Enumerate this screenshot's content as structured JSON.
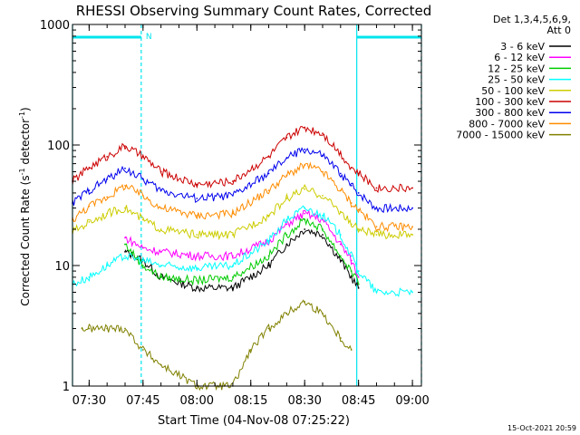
{
  "chart_data": {
    "type": "line",
    "title": "RHESSI Observing Summary Count Rates, Corrected",
    "xlabel": "Start Time (04-Nov-08 07:25:22)",
    "ylabel": "Corrected Count Rate (s",
    "ylabel_sup1": "-1",
    "ylabel_mid": " detector",
    "ylabel_sup2": "-1",
    "ylabel_end": ")",
    "y_scale": "log",
    "ylim": [
      1,
      1000
    ],
    "xlim": [
      "07:25:22",
      "09:02:30"
    ],
    "x_ticks": [
      "07:30",
      "07:45",
      "08:00",
      "08:15",
      "08:30",
      "08:45",
      "09:00"
    ],
    "y_ticks": [
      "1",
      "10",
      "100",
      "1000"
    ],
    "legend": {
      "placement": "right",
      "header_line1": "Det 1,3,4,5,6,9,",
      "header_line2": "Att 0"
    },
    "timestamp": "15-Oct-2021 20:59",
    "annotation": "N",
    "data_gaps": [
      [
        "07:25:22",
        "07:44:30"
      ],
      [
        "08:44:30",
        "09:02:30"
      ]
    ],
    "night_marker": "07:44:30",
    "series": [
      {
        "name": "3 - 6 keV",
        "color": "#000000",
        "x": [
          "07:40",
          "07:45",
          "07:50",
          "08:00",
          "08:10",
          "08:20",
          "08:25",
          "08:30",
          "08:35",
          "08:40",
          "08:43",
          "08:45"
        ],
        "y": [
          13,
          11,
          8,
          6.5,
          6.5,
          10,
          15,
          20,
          18,
          11,
          8,
          6.5
        ]
      },
      {
        "name": "6 - 12 keV",
        "color": "#ff00ff",
        "x": [
          "07:40",
          "07:45",
          "07:50",
          "08:00",
          "08:10",
          "08:20",
          "08:25",
          "08:30",
          "08:35",
          "08:40",
          "08:43",
          "08:45"
        ],
        "y": [
          17,
          14,
          13,
          12,
          12,
          16,
          22,
          27,
          24,
          15,
          11,
          8
        ]
      },
      {
        "name": "12 - 25 keV",
        "color": "#00cc00",
        "x": [
          "07:40",
          "07:45",
          "07:50",
          "08:00",
          "08:10",
          "08:20",
          "08:25",
          "08:30",
          "08:35",
          "08:40",
          "08:43",
          "08:45"
        ],
        "y": [
          15,
          10,
          8,
          7.5,
          8,
          12,
          18,
          24,
          20,
          12,
          9,
          7
        ]
      },
      {
        "name": "25 - 50 keV",
        "color": "#00ffff",
        "x": [
          "07:25:22",
          "07:30",
          "07:35",
          "07:40",
          "07:45",
          "07:50",
          "08:00",
          "08:10",
          "08:20",
          "08:25",
          "08:30",
          "08:35",
          "08:40",
          "08:43",
          "08:45",
          "08:50",
          "09:00"
        ],
        "y": [
          7,
          8,
          10,
          12,
          11,
          10,
          9.5,
          10,
          16,
          24,
          30,
          26,
          18,
          12,
          9,
          6,
          6
        ]
      },
      {
        "name": "50 - 100 keV",
        "color": "#cccc00",
        "x": [
          "07:25:22",
          "07:30",
          "07:35",
          "07:40",
          "07:45",
          "07:50",
          "08:00",
          "08:10",
          "08:20",
          "08:25",
          "08:30",
          "08:35",
          "08:40",
          "08:43",
          "08:45",
          "08:50",
          "09:00"
        ],
        "y": [
          19,
          23,
          27,
          30,
          24,
          20,
          18,
          18,
          26,
          36,
          43,
          38,
          28,
          22,
          20,
          18,
          18
        ]
      },
      {
        "name": "100 - 300 keV",
        "color": "#cc0000",
        "x": [
          "07:25:22",
          "07:30",
          "07:35",
          "07:40",
          "07:45",
          "07:50",
          "08:00",
          "08:10",
          "08:20",
          "08:25",
          "08:30",
          "08:35",
          "08:40",
          "08:43",
          "08:45",
          "08:50",
          "09:00"
        ],
        "y": [
          50,
          65,
          80,
          98,
          80,
          60,
          47,
          50,
          80,
          115,
          140,
          125,
          85,
          65,
          58,
          44,
          44
        ]
      },
      {
        "name": "300 - 800 keV",
        "color": "#0000ee",
        "x": [
          "07:25:22",
          "07:30",
          "07:35",
          "07:40",
          "07:45",
          "07:50",
          "08:00",
          "08:10",
          "08:20",
          "08:25",
          "08:30",
          "08:35",
          "08:40",
          "08:43",
          "08:45",
          "08:50",
          "09:00"
        ],
        "y": [
          33,
          42,
          52,
          64,
          52,
          42,
          36,
          38,
          58,
          78,
          92,
          82,
          58,
          46,
          40,
          30,
          30
        ]
      },
      {
        "name": "800 - 7000 keV",
        "color": "#ff8c00",
        "x": [
          "07:25:22",
          "07:30",
          "07:35",
          "07:40",
          "07:45",
          "07:50",
          "08:00",
          "08:10",
          "08:20",
          "08:25",
          "08:30",
          "08:35",
          "08:40",
          "08:43",
          "08:45",
          "08:50",
          "09:00"
        ],
        "y": [
          24,
          31,
          37,
          46,
          38,
          30,
          26,
          27,
          42,
          56,
          68,
          60,
          42,
          33,
          29,
          21,
          21
        ]
      },
      {
        "name": "7000 - 15000 keV",
        "color": "#808000",
        "x": [
          "07:28",
          "07:30",
          "07:35",
          "07:40",
          "07:45",
          "07:50",
          "08:00",
          "08:10",
          "08:15",
          "08:20",
          "08:25",
          "08:30",
          "08:35",
          "08:40",
          "08:43"
        ],
        "y": [
          3,
          3,
          3,
          3,
          2,
          1.5,
          1,
          1,
          2,
          3,
          4,
          5,
          4,
          2.5,
          2
        ]
      }
    ]
  }
}
